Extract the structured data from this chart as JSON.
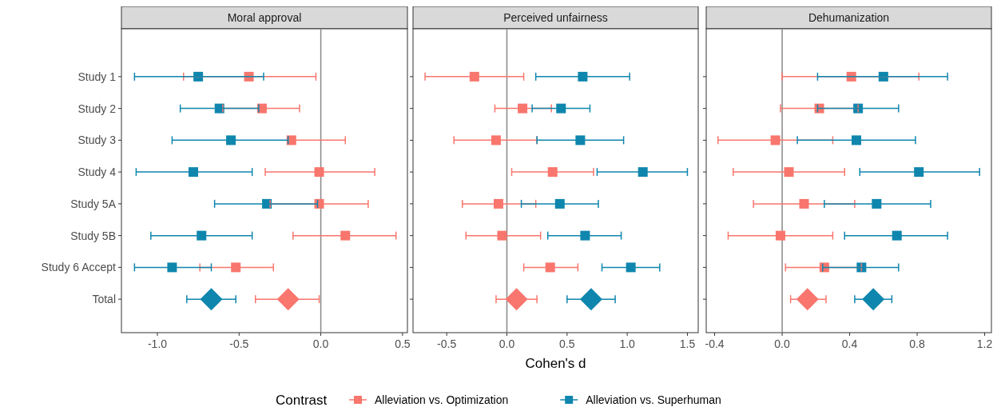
{
  "chart_data": [
    {
      "type": "scatter",
      "title": "Moral approval",
      "orientation": "horizontal",
      "tick_labels": true,
      "legend": false,
      "categories": [
        "Study 1",
        "Study 2",
        "Study 3",
        "Study 4",
        "Study 5A",
        "Study 5B",
        "Study 6 Accept",
        "Total"
      ],
      "xlim": [
        -1.22,
        0.53
      ],
      "xticks": [
        {
          "value": -1,
          "label": "-1.0"
        },
        {
          "value": -0.5,
          "label": "-0.5"
        },
        {
          "value": 0,
          "label": "0.0"
        },
        {
          "value": 0.5,
          "label": "0.5"
        }
      ],
      "ref_lines": [
        {
          "axis": "x",
          "value": 0,
          "color": "#888888"
        }
      ],
      "series": [
        {
          "color": "#f8766d",
          "marker": "square",
          "values": [
            -0.44,
            -0.36,
            -0.18,
            -0.01,
            -0.01,
            0.15,
            -0.52,
            null
          ],
          "errors": [
            [
              -0.84,
              -0.03
            ],
            [
              -0.6,
              -0.13
            ],
            [
              -0.2,
              0.15
            ],
            [
              -0.34,
              0.33
            ],
            [
              -0.31,
              0.29
            ],
            [
              -0.17,
              0.46
            ],
            [
              -0.74,
              -0.29
            ],
            null
          ]
        },
        {
          "color": "#0f86ad",
          "marker": "square",
          "values": [
            -0.75,
            -0.62,
            -0.55,
            -0.78,
            -0.33,
            -0.73,
            -0.91,
            null
          ],
          "errors": [
            [
              -1.14,
              -0.35
            ],
            [
              -0.86,
              -0.38
            ],
            [
              -0.91,
              -0.2
            ],
            [
              -1.13,
              -0.42
            ],
            [
              -0.65,
              -0.02
            ],
            [
              -1.04,
              -0.42
            ],
            [
              -1.14,
              -0.67
            ],
            null
          ]
        },
        {
          "color": "#f8766d",
          "marker": "diamond",
          "values": [
            null,
            null,
            null,
            null,
            null,
            null,
            null,
            -0.2
          ],
          "errors": [
            null,
            null,
            null,
            null,
            null,
            null,
            null,
            [
              -0.4,
              -0.01
            ]
          ]
        },
        {
          "color": "#0f86ad",
          "marker": "diamond",
          "values": [
            null,
            null,
            null,
            null,
            null,
            null,
            null,
            -0.67
          ],
          "errors": [
            null,
            null,
            null,
            null,
            null,
            null,
            null,
            [
              -0.82,
              -0.52
            ]
          ]
        }
      ]
    },
    {
      "type": "scatter",
      "title": "Perceived unfairness",
      "xlabel": "Cohen's d",
      "orientation": "horizontal",
      "tick_labels": "x",
      "legend": "bottom",
      "legend_title": "Contrast",
      "categories": [
        "Study 1",
        "Study 2",
        "Study 3",
        "Study 4",
        "Study 5A",
        "Study 5B",
        "Study 6 Accept",
        "Total"
      ],
      "xlim": [
        -0.78,
        1.59
      ],
      "xticks": [
        {
          "value": -0.5,
          "label": "-0.5"
        },
        {
          "value": 0,
          "label": "0.0"
        },
        {
          "value": 0.5,
          "label": "0.5"
        },
        {
          "value": 1,
          "label": "1.0"
        },
        {
          "value": 1.5,
          "label": "1.5"
        }
      ],
      "ref_lines": [
        {
          "axis": "x",
          "value": 0,
          "color": "#888888"
        }
      ],
      "series": [
        {
          "name": "Alleviation vs. Optimization",
          "color": "#f8766d",
          "marker": "square",
          "values": [
            -0.27,
            0.13,
            -0.09,
            0.38,
            -0.07,
            -0.04,
            0.36,
            null
          ],
          "errors": [
            [
              -0.68,
              0.14
            ],
            [
              -0.1,
              0.37
            ],
            [
              -0.44,
              0.25
            ],
            [
              0.04,
              0.72
            ],
            [
              -0.37,
              0.24
            ],
            [
              -0.34,
              0.28
            ],
            [
              0.14,
              0.59
            ],
            null
          ]
        },
        {
          "name": "Alleviation vs. Superhuman",
          "color": "#0f86ad",
          "marker": "square",
          "values": [
            0.63,
            0.45,
            0.61,
            1.13,
            0.44,
            0.65,
            1.03,
            null
          ],
          "errors": [
            [
              0.24,
              1.02
            ],
            [
              0.21,
              0.69
            ],
            [
              0.25,
              0.97
            ],
            [
              0.75,
              1.5
            ],
            [
              0.12,
              0.76
            ],
            [
              0.34,
              0.95
            ],
            [
              0.79,
              1.27
            ],
            null
          ]
        },
        {
          "color": "#f8766d",
          "marker": "diamond",
          "values": [
            null,
            null,
            null,
            null,
            null,
            null,
            null,
            0.08
          ],
          "errors": [
            null,
            null,
            null,
            null,
            null,
            null,
            null,
            [
              -0.09,
              0.25
            ]
          ]
        },
        {
          "color": "#0f86ad",
          "marker": "diamond",
          "values": [
            null,
            null,
            null,
            null,
            null,
            null,
            null,
            0.7
          ],
          "errors": [
            null,
            null,
            null,
            null,
            null,
            null,
            null,
            [
              0.5,
              0.9
            ]
          ]
        }
      ]
    },
    {
      "type": "scatter",
      "title": "Dehumanization",
      "orientation": "horizontal",
      "tick_labels": "x",
      "legend": false,
      "categories": [
        "Study 1",
        "Study 2",
        "Study 3",
        "Study 4",
        "Study 5A",
        "Study 5B",
        "Study 6 Accept",
        "Total"
      ],
      "xlim": [
        -0.45,
        1.24
      ],
      "xticks": [
        {
          "value": -0.4,
          "label": "-0.4"
        },
        {
          "value": 0,
          "label": "0.0"
        },
        {
          "value": 0.4,
          "label": "0.4"
        },
        {
          "value": 0.8,
          "label": "0.8"
        },
        {
          "value": 1.2,
          "label": "1.2"
        }
      ],
      "ref_lines": [
        {
          "axis": "x",
          "value": 0,
          "color": "#888888"
        }
      ],
      "series": [
        {
          "color": "#f8766d",
          "marker": "square",
          "values": [
            0.41,
            0.22,
            -0.04,
            0.04,
            0.13,
            -0.01,
            0.25,
            null
          ],
          "errors": [
            [
              0.0,
              0.81
            ],
            [
              -0.01,
              0.45
            ],
            [
              -0.38,
              0.3
            ],
            [
              -0.29,
              0.37
            ],
            [
              -0.17,
              0.43
            ],
            [
              -0.32,
              0.3
            ],
            [
              0.02,
              0.47
            ],
            null
          ]
        },
        {
          "color": "#0f86ad",
          "marker": "square",
          "values": [
            0.6,
            0.45,
            0.44,
            0.81,
            0.56,
            0.68,
            0.47,
            null
          ],
          "errors": [
            [
              0.21,
              0.98
            ],
            [
              0.21,
              0.69
            ],
            [
              0.09,
              0.79
            ],
            [
              0.46,
              1.17
            ],
            [
              0.25,
              0.88
            ],
            [
              0.37,
              0.98
            ],
            [
              0.24,
              0.69
            ],
            null
          ]
        },
        {
          "color": "#f8766d",
          "marker": "diamond",
          "values": [
            null,
            null,
            null,
            null,
            null,
            null,
            null,
            0.15
          ],
          "errors": [
            null,
            null,
            null,
            null,
            null,
            null,
            null,
            [
              0.05,
              0.26
            ]
          ]
        },
        {
          "color": "#0f86ad",
          "marker": "diamond",
          "values": [
            null,
            null,
            null,
            null,
            null,
            null,
            null,
            0.54
          ],
          "errors": [
            null,
            null,
            null,
            null,
            null,
            null,
            null,
            [
              0.43,
              0.65
            ]
          ]
        }
      ]
    }
  ]
}
